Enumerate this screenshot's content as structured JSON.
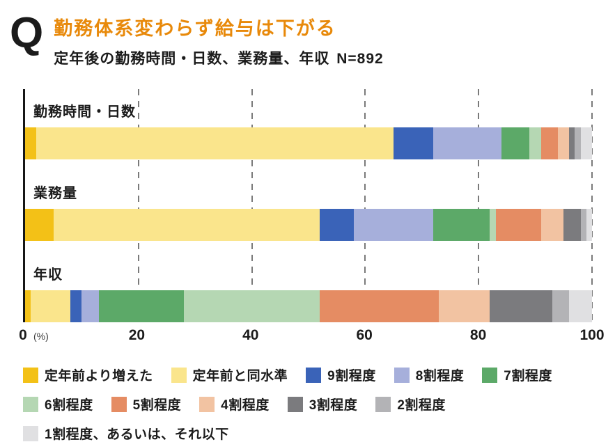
{
  "header": {
    "q_label": "Q",
    "title": "勤務体系変わらず給与は下がる",
    "title_color": "#E8890A",
    "subtitle": "定年後の勤務時間・日数、業務量、年収",
    "sample_size": "N=892"
  },
  "chart_data": {
    "type": "bar",
    "stacked": true,
    "orientation": "horizontal",
    "title": "勤務体系変わらず給与は下がる",
    "subtitle": "定年後の勤務時間・日数、業務量、年収 N=892",
    "categories": [
      "勤務時間・日数",
      "業務量",
      "年収"
    ],
    "series": [
      {
        "name": "定年前より増えた",
        "color": "#F3C117",
        "values": [
          2,
          5,
          1
        ]
      },
      {
        "name": "定年前と同水準",
        "color": "#FAE58C",
        "values": [
          63,
          47,
          7
        ]
      },
      {
        "name": "9割程度",
        "color": "#3A63B8",
        "values": [
          7,
          6,
          2
        ]
      },
      {
        "name": "8割程度",
        "color": "#A6AFDB",
        "values": [
          12,
          14,
          3
        ]
      },
      {
        "name": "7割程度",
        "color": "#5CA968",
        "values": [
          5,
          10,
          15
        ]
      },
      {
        "name": "6割程度",
        "color": "#B5D7B3",
        "values": [
          2,
          1,
          24
        ]
      },
      {
        "name": "5割程度",
        "color": "#E58C63",
        "values": [
          3,
          8,
          21
        ]
      },
      {
        "name": "4割程度",
        "color": "#F2C3A2",
        "values": [
          2,
          4,
          9
        ]
      },
      {
        "name": "3割程度",
        "color": "#7B7B7E",
        "values": [
          1,
          3,
          11
        ]
      },
      {
        "name": "2割程度",
        "color": "#B3B3B6",
        "values": [
          1,
          1,
          3
        ]
      },
      {
        "name": "1割程度、あるいは、それ以下",
        "color": "#E0E0E2",
        "values": [
          2,
          1,
          4
        ]
      }
    ],
    "xticks": [
      0,
      20,
      40,
      60,
      80,
      100
    ],
    "x_unit": "(%)",
    "xlim": [
      0,
      100
    ],
    "grid": "dashed-vertical",
    "legend_position": "bottom"
  }
}
